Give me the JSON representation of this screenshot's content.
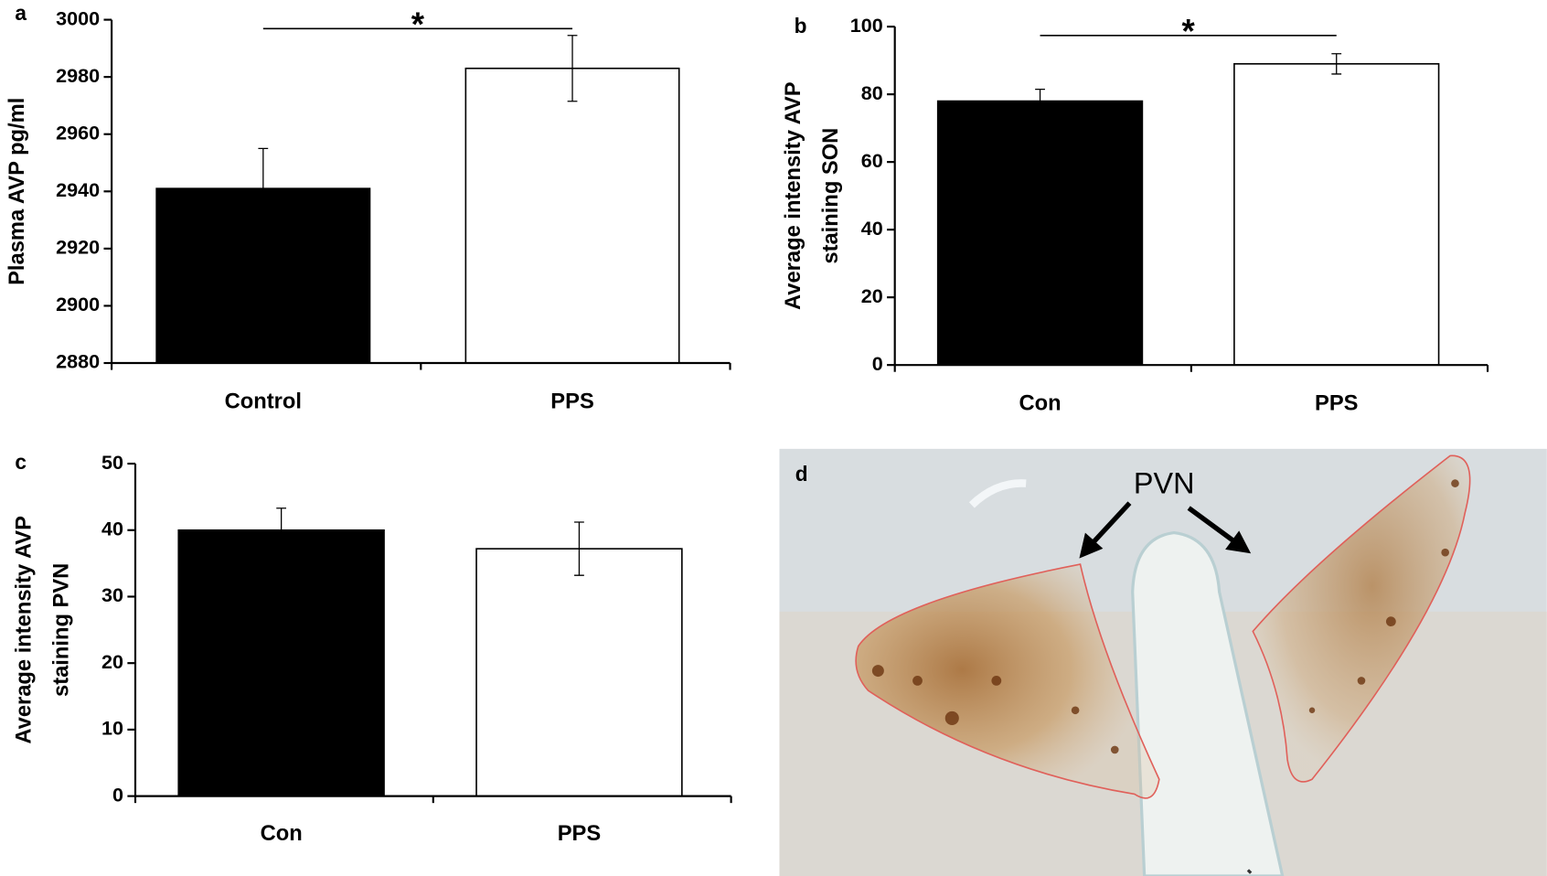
{
  "chart_data": [
    {
      "type": "bar",
      "panel_label": "a",
      "ylabel": [
        "Plasma AVP pg/ml"
      ],
      "categories": [
        "Control",
        "PPS"
      ],
      "values": [
        2941,
        2983
      ],
      "errors": [
        14,
        11.5
      ],
      "colors": [
        "#000000",
        "#ffffff"
      ],
      "ylim": [
        2880,
        3000
      ],
      "yticks": [
        2880,
        2900,
        2920,
        2940,
        2960,
        2980,
        3000
      ],
      "significance": "*"
    },
    {
      "type": "bar",
      "panel_label": "b",
      "ylabel": [
        "Average intensity AVP",
        "staining SON"
      ],
      "categories": [
        "Con",
        "PPS"
      ],
      "values": [
        78,
        89
      ],
      "errors": [
        3.5,
        3
      ],
      "colors": [
        "#000000",
        "#ffffff"
      ],
      "ylim": [
        0,
        100
      ],
      "yticks": [
        0,
        20,
        40,
        60,
        80,
        100
      ],
      "significance": "*"
    },
    {
      "type": "bar",
      "panel_label": "c",
      "ylabel": [
        "Average intensity AVP",
        "staining PVN"
      ],
      "categories": [
        "Con",
        "PPS"
      ],
      "values": [
        40,
        37.2
      ],
      "errors": [
        3.3,
        4
      ],
      "colors": [
        "#000000",
        "#ffffff"
      ],
      "ylim": [
        0,
        50
      ],
      "yticks": [
        0,
        10,
        20,
        30,
        40,
        50
      ]
    }
  ],
  "image_panel": {
    "panel_label": "d",
    "annotation": "PVN"
  }
}
